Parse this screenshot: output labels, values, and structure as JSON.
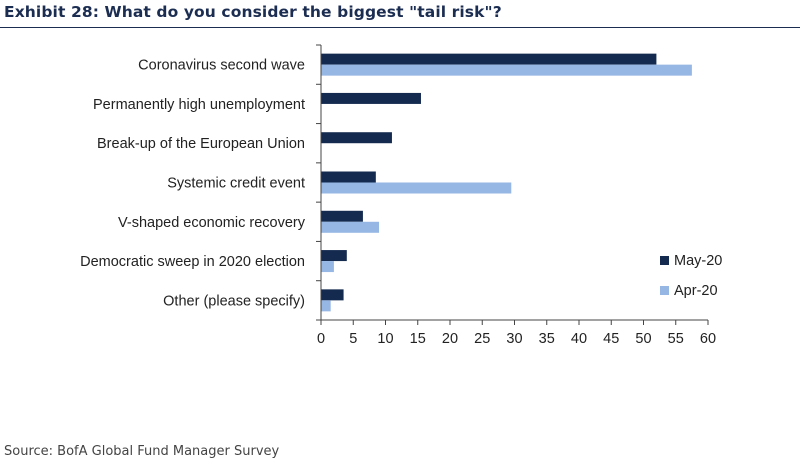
{
  "title": "Exhibit 28: What do you consider the biggest \"tail risk\"?",
  "source": "Source: BofA Global Fund Manager Survey",
  "colors": {
    "May-20": "#142a4f",
    "Apr-20": "#96b6e3",
    "axis": "#444444"
  },
  "chart_data": {
    "type": "bar",
    "orientation": "horizontal",
    "categories": [
      "Coronavirus second wave",
      "Permanently high unemployment",
      "Break-up of the European Union",
      "Systemic credit event",
      "V-shaped economic recovery",
      "Democratic sweep in 2020 election",
      "Other (please specify)"
    ],
    "series": [
      {
        "name": "May-20",
        "values": [
          52,
          15.5,
          11,
          8.5,
          6.5,
          4,
          3.5
        ]
      },
      {
        "name": "Apr-20",
        "values": [
          57.5,
          null,
          null,
          29.5,
          9,
          2,
          1.5
        ]
      }
    ],
    "xlim": [
      0,
      60
    ],
    "xticks": [
      "0",
      "5",
      "10",
      "15",
      "20",
      "25",
      "30",
      "35",
      "40",
      "45",
      "50",
      "55",
      "60"
    ],
    "grid": false,
    "legend_position": "bottom-right"
  }
}
